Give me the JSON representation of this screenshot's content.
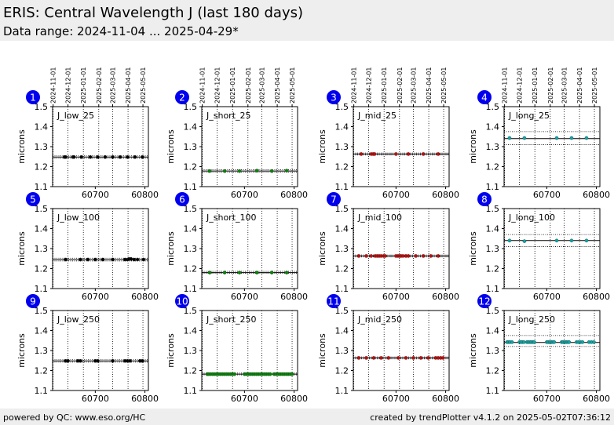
{
  "header": {
    "title": "ERIS: Central Wavelength J (last 180 days)",
    "subtitle": "Data range: 2024-11-04 ... 2025-04-29*"
  },
  "footer": {
    "left": "powered by QC: www.eso.org/HC",
    "right": "created by trendPlotter v4.1.2 on 2025-05-02T07:36:12"
  },
  "colors": {
    "badge": "#0000ee",
    "low": "#000000",
    "short": "#008800",
    "mid": "#cc0000",
    "long": "#00aaaa"
  },
  "chart_data": {
    "type": "scatter",
    "shared_axes": {
      "ylabel": "microns",
      "ylim": [
        1.1,
        1.5
      ],
      "yticks": [
        1.1,
        1.2,
        1.3,
        1.4,
        1.5
      ],
      "xlim": [
        60614,
        60807
      ],
      "xticks": [
        60700,
        60800
      ],
      "date_ticks": [
        "2024-11-01",
        "2024-12-01",
        "2025-01-01",
        "2025-02-01",
        "2025-03-01",
        "2025-04-01",
        "2025-05-01"
      ],
      "date_tick_mjd": [
        60615,
        60645,
        60676,
        60707,
        60735,
        60766,
        60796
      ],
      "grid": "vertical dotted lines at date ticks"
    },
    "panels": [
      {
        "index": "1",
        "label": "J_low_25",
        "group": "low",
        "ref": 1.248,
        "band": [
          1.242,
          1.254
        ],
        "x": [
          60638,
          60640,
          60655,
          60657,
          60672,
          60690,
          60705,
          60720,
          60735,
          60750,
          60765,
          60780,
          60795
        ],
        "y": [
          1.248,
          1.248,
          1.248,
          1.248,
          1.248,
          1.248,
          1.248,
          1.248,
          1.248,
          1.248,
          1.248,
          1.248,
          1.248
        ]
      },
      {
        "index": "2",
        "label": "J_short_25",
        "group": "short",
        "ref": 1.178,
        "band": [
          1.172,
          1.184
        ],
        "x": [
          60630,
          60660,
          60690,
          60725,
          60755,
          60785
        ],
        "y": [
          1.178,
          1.178,
          1.178,
          1.18,
          1.178,
          1.18
        ]
      },
      {
        "index": "3",
        "label": "J_mid_25",
        "group": "mid",
        "ref": 1.263,
        "band": [
          1.258,
          1.268
        ],
        "x": [
          60630,
          60650,
          60654,
          60657,
          60700,
          60725,
          60755,
          60785
        ],
        "y": [
          1.263,
          1.263,
          1.263,
          1.263,
          1.263,
          1.263,
          1.263,
          1.263
        ]
      },
      {
        "index": "4",
        "label": "J_long_25",
        "group": "long",
        "ref": 1.34,
        "band": [
          1.31,
          1.375
        ],
        "x": [
          60625,
          60655,
          60720,
          60750,
          60780
        ],
        "y": [
          1.343,
          1.343,
          1.343,
          1.343,
          1.343
        ]
      },
      {
        "index": "5",
        "label": "J_low_100",
        "group": "low",
        "ref": 1.245,
        "band": [
          1.238,
          1.252
        ],
        "x": [
          60640,
          60670,
          60685,
          60700,
          60715,
          60735,
          60760,
          60765,
          60768,
          60772,
          60778,
          60785,
          60797
        ],
        "y": [
          1.245,
          1.245,
          1.245,
          1.245,
          1.245,
          1.245,
          1.245,
          1.245,
          1.248,
          1.248,
          1.245,
          1.245,
          1.245
        ]
      },
      {
        "index": "6",
        "label": "J_short_100",
        "group": "short",
        "ref": 1.18,
        "band": [
          1.176,
          1.186
        ],
        "x": [
          60630,
          60660,
          60690,
          60725,
          60755,
          60785
        ],
        "y": [
          1.18,
          1.18,
          1.18,
          1.18,
          1.18,
          1.18
        ]
      },
      {
        "index": "7",
        "label": "J_mid_100",
        "group": "mid",
        "ref": 1.263,
        "band": [
          1.258,
          1.268
        ],
        "x": [
          60625,
          60640,
          60650,
          60658,
          60662,
          60666,
          60670,
          60675,
          60678,
          60700,
          60704,
          60707,
          60710,
          60714,
          60720,
          60725,
          60740,
          60755,
          60770,
          60785
        ],
        "y": [
          1.263,
          1.263,
          1.263,
          1.263,
          1.263,
          1.263,
          1.263,
          1.263,
          1.263,
          1.263,
          1.263,
          1.263,
          1.263,
          1.263,
          1.263,
          1.263,
          1.263,
          1.263,
          1.263,
          1.263
        ]
      },
      {
        "index": "8",
        "label": "J_long_100",
        "group": "long",
        "ref": 1.34,
        "band": [
          1.31,
          1.37
        ],
        "x": [
          60625,
          60655,
          60720,
          60750,
          60780
        ],
        "y": [
          1.34,
          1.337,
          1.34,
          1.34,
          1.34
        ]
      },
      {
        "index": "9",
        "label": "J_low_250",
        "group": "low",
        "ref": 1.248,
        "band": [
          1.242,
          1.254
        ],
        "x": [
          60640,
          60645,
          60665,
          60670,
          60700,
          60705,
          60735,
          60760,
          60765,
          60770,
          60790,
          60795
        ],
        "y": [
          1.248,
          1.248,
          1.248,
          1.248,
          1.248,
          1.248,
          1.248,
          1.248,
          1.248,
          1.248,
          1.248,
          1.248
        ]
      },
      {
        "index": "10",
        "label": "J_short_250",
        "group": "short",
        "ref": 1.182,
        "band": [
          1.178,
          1.187
        ],
        "x": [
          60625,
          60628,
          60632,
          60636,
          60640,
          60644,
          60648,
          60652,
          60656,
          60660,
          60664,
          60668,
          60672,
          60676,
          60680,
          60700,
          60704,
          60708,
          60712,
          60716,
          60720,
          60724,
          60728,
          60732,
          60736,
          60740,
          60744,
          60748,
          60752,
          60760,
          60764,
          60768,
          60772,
          60776,
          60780,
          60784,
          60788,
          60792,
          60796
        ],
        "y": [
          1.182,
          1.182,
          1.182,
          1.182,
          1.182,
          1.182,
          1.182,
          1.182,
          1.182,
          1.182,
          1.182,
          1.182,
          1.182,
          1.182,
          1.182,
          1.182,
          1.182,
          1.182,
          1.182,
          1.182,
          1.182,
          1.182,
          1.182,
          1.182,
          1.182,
          1.182,
          1.182,
          1.182,
          1.182,
          1.182,
          1.182,
          1.182,
          1.182,
          1.182,
          1.182,
          1.182,
          1.182,
          1.182,
          1.182
        ]
      },
      {
        "index": "11",
        "label": "J_mid_250",
        "group": "mid",
        "ref": 1.263,
        "band": [
          1.258,
          1.268
        ],
        "x": [
          60625,
          60640,
          60655,
          60670,
          60685,
          60705,
          60720,
          60735,
          60750,
          60765,
          60780,
          60785,
          60790,
          60795
        ],
        "y": [
          1.263,
          1.263,
          1.263,
          1.263,
          1.263,
          1.263,
          1.263,
          1.263,
          1.263,
          1.263,
          1.263,
          1.263,
          1.263,
          1.263
        ]
      },
      {
        "index": "12",
        "label": "J_long_250",
        "group": "long",
        "ref": 1.34,
        "band": [
          1.32,
          1.375
        ],
        "x": [
          60620,
          60623,
          60626,
          60630,
          60645,
          60648,
          60651,
          60654,
          60660,
          60663,
          60666,
          60669,
          60672,
          60675,
          60700,
          60703,
          60706,
          60709,
          60712,
          60715,
          60730,
          60733,
          60736,
          60739,
          60742,
          60745,
          60760,
          60764,
          60768,
          60772,
          60785,
          60790,
          60795
        ],
        "y": [
          1.342,
          1.342,
          1.342,
          1.342,
          1.342,
          1.342,
          1.342,
          1.342,
          1.342,
          1.342,
          1.342,
          1.342,
          1.342,
          1.342,
          1.342,
          1.342,
          1.342,
          1.342,
          1.342,
          1.342,
          1.342,
          1.342,
          1.342,
          1.342,
          1.342,
          1.342,
          1.342,
          1.342,
          1.342,
          1.342,
          1.342,
          1.342,
          1.342
        ]
      }
    ]
  }
}
